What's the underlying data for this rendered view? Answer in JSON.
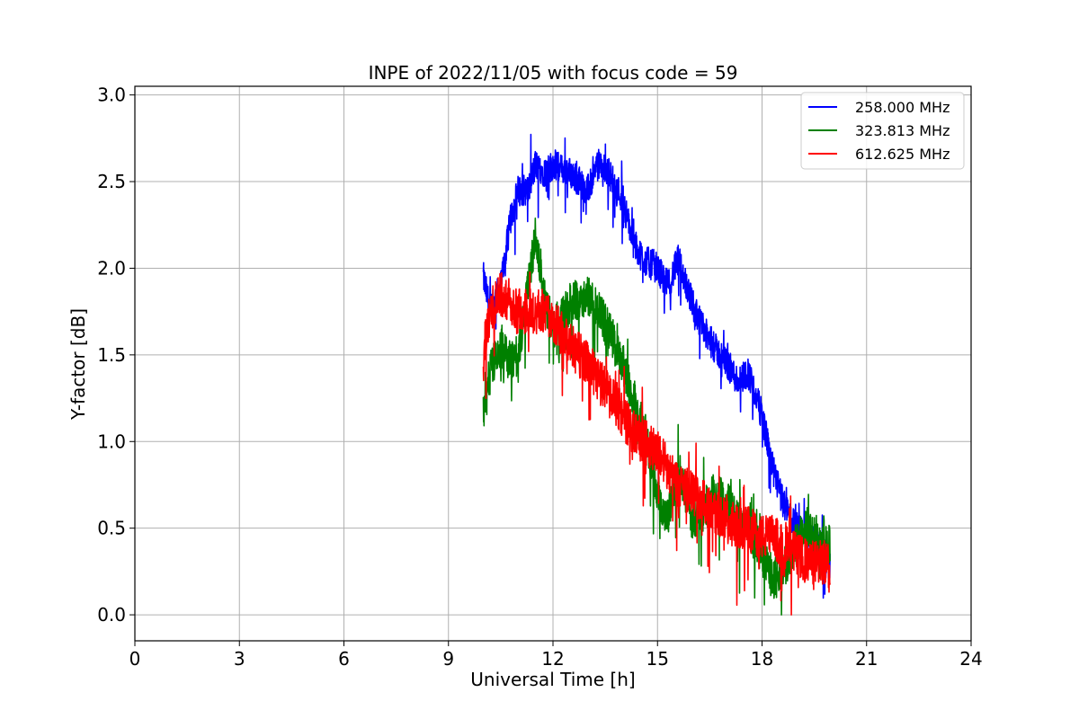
{
  "chart_data": {
    "type": "line",
    "title": "INPE of 2022/11/05 with focus code = 59",
    "xlabel": "Universal Time [h]",
    "ylabel": "Y-factor [dB]",
    "xlim": [
      0,
      24
    ],
    "ylim": [
      -0.15,
      3.05
    ],
    "xticks": [
      0,
      3,
      6,
      9,
      12,
      15,
      18,
      21,
      24
    ],
    "xtick_labels": [
      "0",
      "3",
      "6",
      "9",
      "12",
      "15",
      "18",
      "21",
      "24"
    ],
    "yticks": [
      0.0,
      0.5,
      1.0,
      1.5,
      2.0,
      2.5,
      3.0
    ],
    "ytick_labels": [
      "0.0",
      "0.5",
      "1.0",
      "1.5",
      "2.0",
      "2.5",
      "3.0"
    ],
    "grid": true,
    "legend_position": "top-right",
    "series": [
      {
        "name": "258.000 MHz",
        "color": "#0000ff",
        "amplitude": 0.09,
        "x": [
          10.0,
          10.2,
          10.5,
          10.8,
          11.0,
          11.3,
          11.5,
          11.8,
          12.0,
          12.5,
          13.0,
          13.3,
          13.6,
          14.0,
          14.3,
          14.6,
          15.0,
          15.3,
          15.6,
          16.0,
          16.3,
          16.6,
          17.0,
          17.3,
          17.6,
          18.0,
          18.3,
          18.6,
          19.0,
          19.3,
          19.6,
          19.95
        ],
        "y": [
          1.95,
          1.75,
          1.9,
          2.3,
          2.45,
          2.45,
          2.6,
          2.55,
          2.6,
          2.55,
          2.45,
          2.6,
          2.55,
          2.4,
          2.15,
          2.05,
          2.0,
          1.9,
          2.05,
          1.8,
          1.65,
          1.55,
          1.45,
          1.35,
          1.4,
          1.15,
          0.85,
          0.65,
          0.5,
          0.45,
          0.4,
          0.3
        ]
      },
      {
        "name": "323.813 MHz",
        "color": "#008000",
        "amplitude": 0.12,
        "x": [
          10.0,
          10.2,
          10.5,
          10.8,
          11.0,
          11.3,
          11.5,
          11.8,
          12.0,
          12.5,
          13.0,
          13.3,
          13.6,
          14.0,
          14.3,
          14.6,
          15.0,
          15.3,
          15.6,
          16.0,
          16.3,
          16.6,
          17.0,
          17.3,
          17.6,
          18.0,
          18.3,
          18.6,
          19.0,
          19.3,
          19.6,
          19.95
        ],
        "y": [
          1.15,
          1.4,
          1.55,
          1.45,
          1.5,
          1.9,
          2.2,
          1.8,
          1.65,
          1.8,
          1.85,
          1.75,
          1.65,
          1.45,
          1.25,
          1.1,
          0.7,
          0.55,
          0.85,
          0.55,
          0.6,
          0.7,
          0.65,
          0.55,
          0.5,
          0.35,
          0.2,
          0.25,
          0.45,
          0.5,
          0.45,
          0.4
        ]
      },
      {
        "name": "612.625 MHz",
        "color": "#ff0000",
        "amplitude": 0.13,
        "x": [
          10.0,
          10.2,
          10.5,
          10.8,
          11.0,
          11.3,
          11.5,
          11.8,
          12.0,
          12.5,
          13.0,
          13.3,
          13.6,
          14.0,
          14.3,
          14.6,
          15.0,
          15.3,
          15.6,
          16.0,
          16.3,
          16.6,
          17.0,
          17.3,
          17.6,
          18.0,
          18.3,
          18.6,
          19.0,
          19.3,
          19.6,
          19.95
        ],
        "y": [
          1.5,
          1.75,
          1.85,
          1.8,
          1.75,
          1.75,
          1.75,
          1.75,
          1.7,
          1.55,
          1.45,
          1.35,
          1.3,
          1.15,
          1.05,
          1.0,
          0.95,
          0.85,
          0.75,
          0.7,
          0.65,
          0.6,
          0.55,
          0.5,
          0.5,
          0.45,
          0.45,
          0.4,
          0.35,
          0.3,
          0.3,
          0.3
        ]
      }
    ]
  }
}
